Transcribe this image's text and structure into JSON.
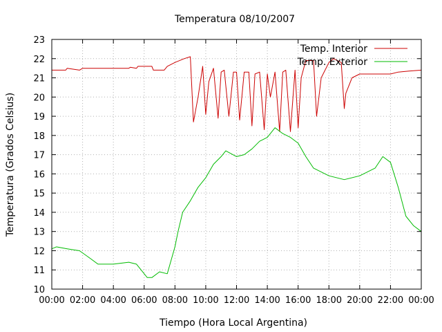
{
  "chart_data": {
    "type": "line",
    "title": "Temperatura 08/10/2007",
    "xlabel": "Tiempo (Hora Local Argentina)",
    "ylabel": "Temperatura (Grados Celsius)",
    "xlim": [
      0,
      24
    ],
    "ylim": [
      10,
      23
    ],
    "x_tick_labels": [
      "00:00",
      "02:00",
      "04:00",
      "06:00",
      "08:00",
      "10:00",
      "12:00",
      "14:00",
      "16:00",
      "18:00",
      "20:00",
      "22:00",
      "00:00"
    ],
    "y_tick_labels": [
      "10",
      "11",
      "12",
      "13",
      "14",
      "15",
      "16",
      "17",
      "18",
      "19",
      "20",
      "21",
      "22",
      "23"
    ],
    "grid": true,
    "legend_position": "top-right",
    "series": [
      {
        "name": "Temp. Interior",
        "color": "#cc0000",
        "x": [
          0,
          0.9,
          1.0,
          1.8,
          2.0,
          5.0,
          5.1,
          5.5,
          5.6,
          6.5,
          6.6,
          7.3,
          7.5,
          8.0,
          8.6,
          9.0,
          9.2,
          9.5,
          9.8,
          10.0,
          10.2,
          10.5,
          10.8,
          11.0,
          11.2,
          11.5,
          11.8,
          12.0,
          12.2,
          12.5,
          12.8,
          13.0,
          13.2,
          13.5,
          13.8,
          14.0,
          14.2,
          14.5,
          14.8,
          15.0,
          15.2,
          15.5,
          15.8,
          16.0,
          16.2,
          16.5,
          17.0,
          17.2,
          17.5,
          18.0,
          18.3,
          18.8,
          19.0,
          19.1,
          19.5,
          20.0,
          21.0,
          22.0,
          22.5,
          23.2,
          24
        ],
        "y": [
          21.4,
          21.4,
          21.5,
          21.4,
          21.5,
          21.5,
          21.55,
          21.5,
          21.6,
          21.6,
          21.4,
          21.4,
          21.6,
          21.8,
          22.0,
          22.1,
          18.7,
          20.0,
          21.6,
          19.1,
          20.8,
          21.5,
          18.9,
          21.3,
          21.4,
          19.0,
          21.3,
          21.3,
          18.8,
          21.3,
          21.3,
          18.5,
          21.2,
          21.3,
          18.3,
          21.2,
          20.0,
          21.3,
          18.2,
          21.3,
          21.4,
          18.2,
          21.4,
          18.4,
          21.0,
          21.9,
          21.9,
          19.0,
          21.0,
          21.8,
          22.0,
          21.8,
          19.4,
          20.2,
          21.0,
          21.2,
          21.2,
          21.2,
          21.3,
          21.35,
          21.4
        ]
      },
      {
        "name": "Temp. Exterior",
        "color": "#00bb00",
        "x": [
          0,
          0.3,
          1.0,
          1.8,
          2.5,
          3.0,
          4.0,
          5.0,
          5.5,
          6.0,
          6.2,
          6.5,
          7.0,
          7.5,
          8.0,
          8.2,
          8.5,
          9.0,
          9.5,
          10.0,
          10.5,
          11.0,
          11.3,
          12.0,
          12.5,
          13.0,
          13.5,
          14.0,
          14.5,
          15.0,
          15.5,
          16.0,
          16.5,
          17.0,
          18.0,
          19.0,
          20.0,
          21.0,
          21.5,
          22.0,
          22.5,
          23.0,
          23.5,
          24
        ],
        "y": [
          12.1,
          12.2,
          12.1,
          12.0,
          11.6,
          11.3,
          11.3,
          11.4,
          11.3,
          10.8,
          10.6,
          10.6,
          10.9,
          10.8,
          12.2,
          13.0,
          14.0,
          14.6,
          15.3,
          15.8,
          16.5,
          16.9,
          17.2,
          16.9,
          17.0,
          17.3,
          17.7,
          17.9,
          18.4,
          18.1,
          17.9,
          17.6,
          16.9,
          16.3,
          15.9,
          15.7,
          15.9,
          16.3,
          16.9,
          16.6,
          15.3,
          13.8,
          13.3,
          13.0
        ]
      }
    ]
  }
}
